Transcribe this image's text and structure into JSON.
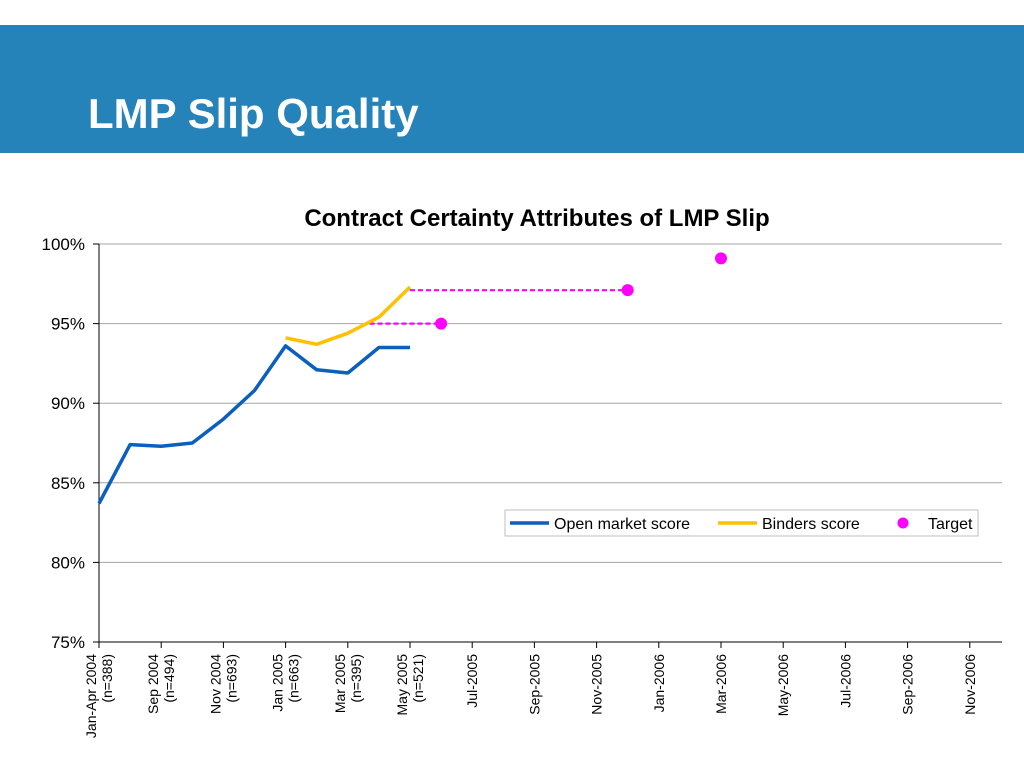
{
  "slide": {
    "title": "LMP Slip Quality"
  },
  "colors": {
    "banner": "#2683ba",
    "open_market": "#0a5fbf",
    "binders": "#ffc000",
    "target": "#ff00ff"
  },
  "chart_data": {
    "type": "line",
    "title": "Contract Certainty Attributes of LMP Slip",
    "xlabel": "",
    "ylabel": "",
    "ylim": [
      75,
      100
    ],
    "y_ticks": [
      "75%",
      "80%",
      "85%",
      "90%",
      "95%",
      "100%"
    ],
    "y_tick_values": [
      75,
      80,
      85,
      90,
      95,
      100
    ],
    "x_categories": [
      [
        "Jan-Apr 2004",
        "(n=388)"
      ],
      [
        "",
        ""
      ],
      [
        "Sep 2004",
        "(n=494)"
      ],
      [
        "",
        ""
      ],
      [
        "Nov 2004",
        "(n=693)"
      ],
      [
        "",
        ""
      ],
      [
        "Jan 2005",
        "(n=663)"
      ],
      [
        "",
        ""
      ],
      [
        "Mar 2005",
        "(n=395)"
      ],
      [
        "",
        ""
      ],
      [
        "May 2005",
        "(n=521)"
      ],
      [
        "",
        ""
      ],
      [
        "Jul-2005",
        ""
      ],
      [
        "",
        ""
      ],
      [
        "Sep-2005",
        ""
      ],
      [
        "",
        ""
      ],
      [
        "Nov-2005",
        ""
      ],
      [
        "",
        ""
      ],
      [
        "Jan-2006",
        ""
      ],
      [
        "",
        ""
      ],
      [
        "Mar-2006",
        ""
      ],
      [
        "",
        ""
      ],
      [
        "May-2006",
        ""
      ],
      [
        "",
        ""
      ],
      [
        "Jul-2006",
        ""
      ],
      [
        "",
        ""
      ],
      [
        "Sep-2006",
        ""
      ],
      [
        "",
        ""
      ],
      [
        "Nov-2006",
        ""
      ]
    ],
    "grid": true,
    "legend_position": "right-middle",
    "series": [
      {
        "name": "Open market score",
        "color": "#0a5fbf",
        "style": "solid",
        "points": [
          [
            0,
            83.7
          ],
          [
            1,
            87.4
          ],
          [
            2,
            87.3
          ],
          [
            3,
            87.5
          ],
          [
            4,
            89.0
          ],
          [
            5,
            90.8
          ],
          [
            6,
            93.6
          ],
          [
            7,
            92.1
          ],
          [
            8,
            91.9
          ],
          [
            9,
            93.5
          ],
          [
            10,
            93.5
          ]
        ]
      },
      {
        "name": "Binders score",
        "color": "#ffc000",
        "style": "solid",
        "points": [
          [
            6,
            94.1
          ],
          [
            7,
            93.7
          ],
          [
            8,
            94.4
          ],
          [
            9,
            95.4
          ],
          [
            10,
            97.3
          ]
        ]
      }
    ],
    "target_lines": [
      {
        "from": [
          8.7,
          95.0
        ],
        "to": [
          11.0,
          95.0
        ]
      },
      {
        "from": [
          10.0,
          97.1
        ],
        "to": [
          17.0,
          97.1
        ]
      }
    ],
    "target_points": {
      "name": "Target",
      "color": "#ff00ff",
      "points": [
        [
          11.0,
          95.0
        ],
        [
          17.0,
          97.1
        ],
        [
          20.0,
          99.1
        ]
      ]
    }
  }
}
